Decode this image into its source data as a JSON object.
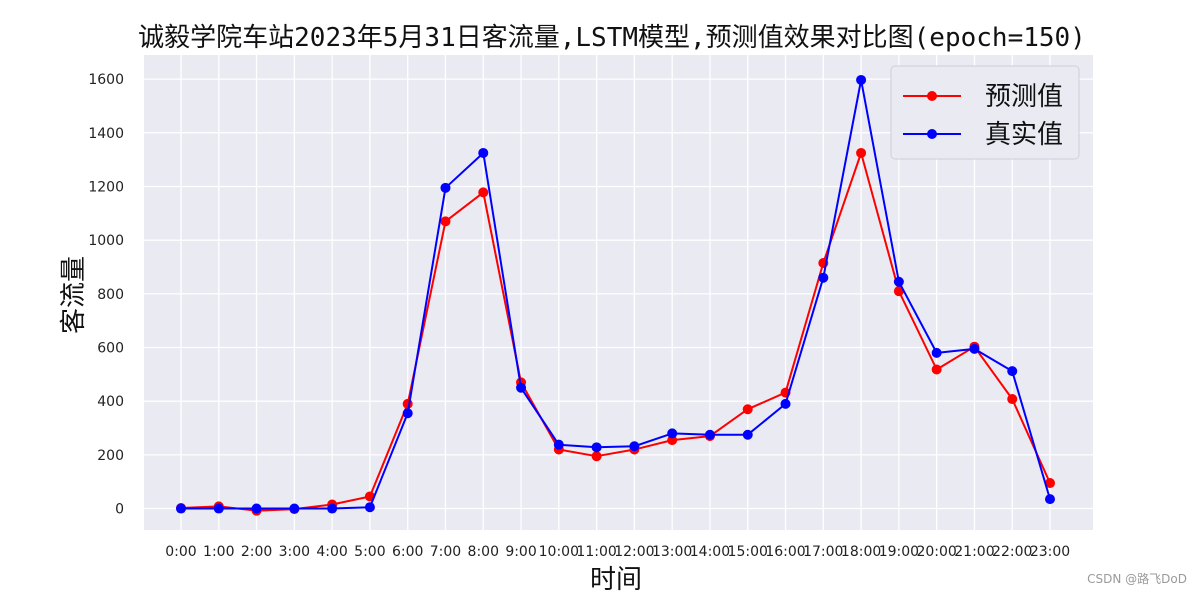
{
  "chart_data": {
    "type": "line",
    "title": "诚毅学院车站2023年5月31日客流量,LSTM模型,预测值效果对比图(epoch=150)",
    "xlabel": "时间",
    "ylabel": "客流量",
    "categories": [
      "0:00",
      "1:00",
      "2:00",
      "3:00",
      "4:00",
      "5:00",
      "6:00",
      "7:00",
      "8:00",
      "9:00",
      "10:00",
      "11:00",
      "12:00",
      "13:00",
      "14:00",
      "15:00",
      "16:00",
      "17:00",
      "18:00",
      "19:00",
      "20:00",
      "21:00",
      "22:00",
      "23:00"
    ],
    "ylim": [
      -80,
      1690
    ],
    "yticks": [
      0,
      200,
      400,
      600,
      800,
      1000,
      1200,
      1400,
      1600
    ],
    "grid": true,
    "legend_position": "top-right",
    "series": [
      {
        "name": "预测值",
        "color": "#ff0000",
        "values": [
          2,
          8,
          -8,
          -2,
          15,
          45,
          390,
          1070,
          1178,
          470,
          220,
          195,
          220,
          255,
          270,
          370,
          432,
          915,
          1325,
          810,
          518,
          603,
          408,
          95
        ]
      },
      {
        "name": "真实值",
        "color": "#0000ff",
        "values": [
          0,
          0,
          0,
          0,
          0,
          5,
          355,
          1195,
          1325,
          450,
          238,
          228,
          232,
          280,
          275,
          275,
          390,
          860,
          1597,
          845,
          580,
          595,
          512,
          35
        ]
      }
    ]
  },
  "watermark": "CSDN @路飞DoD",
  "colors": {
    "plot_bg": "#eaeaf2",
    "grid": "#ffffff"
  }
}
